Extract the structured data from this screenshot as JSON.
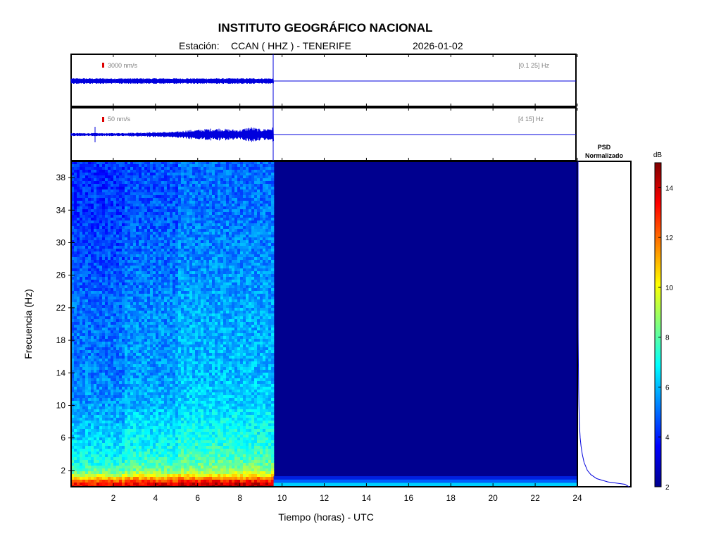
{
  "header": {
    "title": "INSTITUTO GEOGRÁFICO NACIONAL",
    "station_prefix": "Estación:",
    "station": "CCAN ( HHZ ) - TENERIFE",
    "date": "2026-01-02"
  },
  "colors": {
    "frame": "#000000",
    "trace": "#0000dd",
    "scale_marker": "#dd0000",
    "background": "#ffffff",
    "empty_spectrogram": "#00008f"
  },
  "chart_data": [
    {
      "type": "line",
      "name": "trace-broadband",
      "amplitude_scale_label": "3000 nm/s",
      "band_label": "[0.1 25] Hz",
      "xlim": [
        0,
        24
      ],
      "data_end_hour": 9.6,
      "description_of_signal": "continuous low-amplitude noise until ~9.6 h, flat line afterwards"
    },
    {
      "type": "line",
      "name": "trace-high-frequency",
      "amplitude_scale_label": "50 nm/s",
      "band_label": "[4 15] Hz",
      "xlim": [
        0,
        24
      ],
      "data_end_hour": 9.6,
      "envelope_hours": [
        0,
        1,
        2,
        3,
        4,
        5,
        5.5,
        6,
        6.5,
        7,
        7.5,
        8,
        8.5,
        9,
        9.6
      ],
      "envelope_relative": [
        0.15,
        0.15,
        0.15,
        0.2,
        0.25,
        0.3,
        0.45,
        0.5,
        0.6,
        0.65,
        0.55,
        0.5,
        0.8,
        0.55,
        0.75
      ],
      "spike_hour": 1.1
    },
    {
      "type": "heatmap",
      "name": "spectrogram",
      "xlabel": "Tiempo (horas) - UTC",
      "ylabel": "Frecuencia  (Hz)",
      "xlim": [
        0,
        24
      ],
      "ylim": [
        0,
        40
      ],
      "xticks": [
        2,
        4,
        6,
        8,
        10,
        12,
        14,
        16,
        18,
        20,
        22,
        24
      ],
      "yticks": [
        2,
        6,
        10,
        14,
        18,
        22,
        26,
        30,
        34,
        38
      ],
      "data_end_hour": 9.6,
      "colormap": "jet",
      "clim": [
        2,
        15
      ],
      "energy_profile_dB": {
        "freq_hz": [
          0,
          0.5,
          1,
          1.5,
          2,
          3,
          4,
          6,
          8,
          10,
          14,
          18,
          22,
          26,
          30,
          34,
          40
        ],
        "db": [
          13.5,
          13,
          11,
          9,
          8,
          7.2,
          6.8,
          6.3,
          6,
          5.6,
          5.2,
          5.1,
          5.0,
          4.7,
          4.5,
          4.3,
          4.2
        ]
      },
      "after_data_db": 2
    },
    {
      "type": "line",
      "name": "psd-normalized",
      "title_line1": "PSD",
      "title_line2": "Normalizado",
      "freq_hz": [
        0,
        0.3,
        0.6,
        1,
        1.5,
        2,
        3,
        4,
        5,
        6,
        8,
        10,
        12,
        14,
        16,
        18,
        20,
        22,
        40
      ],
      "psd": [
        0.6,
        0.55,
        0.35,
        0.22,
        0.15,
        0.11,
        0.07,
        0.05,
        0.035,
        0.025,
        0.015,
        0.01,
        0.007,
        0.005,
        0.003,
        0.002,
        0.001,
        0.0005,
        0.0
      ]
    },
    {
      "type": "heatmap",
      "name": "colorbar",
      "unit_label": "dB",
      "ticks": [
        2,
        4,
        6,
        8,
        10,
        12,
        14
      ],
      "clim": [
        2,
        15
      ]
    }
  ]
}
